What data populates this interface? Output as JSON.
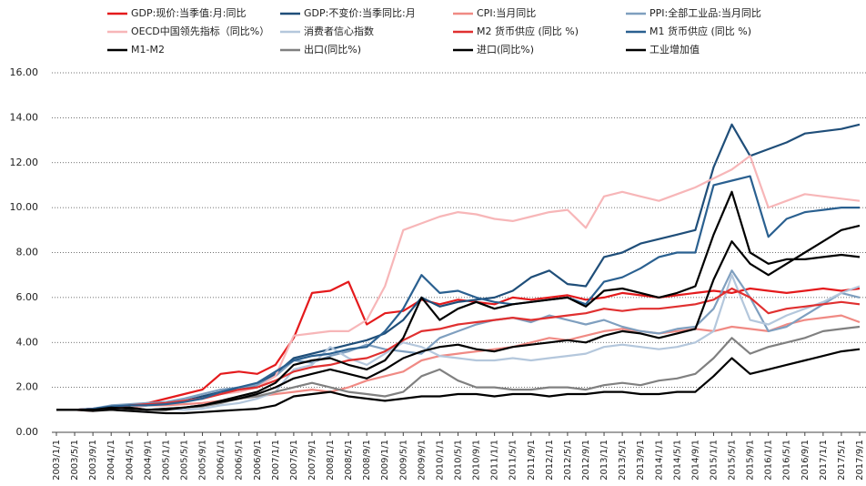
{
  "chart_data": {
    "type": "line",
    "categories": [
      "2003/1/1",
      "2003/5/1",
      "2003/9/1",
      "2004/1/1",
      "2004/5/1",
      "2004/9/1",
      "2005/1/1",
      "2005/5/1",
      "2005/9/1",
      "2006/1/1",
      "2006/5/1",
      "2006/9/1",
      "2007/1/1",
      "2007/5/1",
      "2007/9/1",
      "2008/1/1",
      "2008/5/1",
      "2008/9/1",
      "2009/1/1",
      "2009/5/1",
      "2009/9/1",
      "2010/1/1",
      "2010/5/1",
      "2010/9/1",
      "2011/1/1",
      "2011/5/1",
      "2011/9/1",
      "2012/1/1",
      "2012/5/1",
      "2012/9/1",
      "2013/1/1",
      "2013/5/1",
      "2013/9/1",
      "2014/1/1",
      "2014/5/1",
      "2014/9/1",
      "2015/1/1",
      "2015/5/1",
      "2015/9/1",
      "2016/1/1",
      "2016/5/1",
      "2016/9/1",
      "2017/1/1",
      "2017/5/1",
      "2017/9/1"
    ],
    "ylim": [
      0,
      16
    ],
    "yticks": [
      {
        "value": 0,
        "label": "0.00"
      },
      {
        "value": 2,
        "label": "2.00"
      },
      {
        "value": 4,
        "label": "4.00"
      },
      {
        "value": 6,
        "label": "6.00"
      },
      {
        "value": 8,
        "label": "8.00"
      },
      {
        "value": 10,
        "label": "10.00"
      },
      {
        "value": 12,
        "label": "12.00"
      },
      {
        "value": 14,
        "label": "14.00"
      },
      {
        "value": 16,
        "label": "16.00"
      }
    ],
    "grid": true,
    "series": [
      {
        "name": "GDP:现价:当季值:月:同比",
        "color": "#e41a1c",
        "values": [
          1,
          1,
          1.05,
          1.1,
          1.2,
          1.3,
          1.5,
          1.7,
          1.9,
          2.6,
          2.7,
          2.6,
          3.0,
          4.2,
          6.2,
          6.3,
          6.7,
          4.8,
          5.3,
          5.4,
          5.9,
          5.7,
          5.9,
          5.8,
          5.7,
          6.0,
          5.9,
          6.0,
          6.1,
          5.9,
          6.0,
          6.2,
          6.1,
          6.0,
          6.1,
          6.2,
          6.3,
          6.2,
          6.4,
          6.3,
          6.2,
          6.3,
          6.4,
          6.3,
          6.4
        ]
      },
      {
        "name": "GDP:不变价:当季同比:月",
        "color": "#1f4e79",
        "values": [
          1,
          1,
          1.05,
          1.1,
          1.15,
          1.2,
          1.3,
          1.4,
          1.6,
          1.8,
          1.9,
          2.1,
          2.6,
          3.3,
          3.5,
          3.7,
          3.9,
          4.1,
          4.4,
          5.0,
          6.0,
          5.6,
          5.8,
          5.9,
          6.0,
          6.3,
          6.9,
          7.2,
          6.6,
          6.5,
          7.8,
          8.0,
          8.4,
          8.6,
          8.8,
          9.0,
          11.8,
          13.7,
          12.3,
          12.6,
          12.9,
          13.3,
          13.4,
          13.5,
          13.7
        ]
      },
      {
        "name": "CPI:当月同比",
        "color": "#f08a84",
        "values": [
          1,
          1,
          0.95,
          1.05,
          1.1,
          1.2,
          1.2,
          1.25,
          1.3,
          1.4,
          1.5,
          1.6,
          1.7,
          1.8,
          1.9,
          1.8,
          2.0,
          2.3,
          2.5,
          2.7,
          3.2,
          3.4,
          3.5,
          3.6,
          3.7,
          3.8,
          4.0,
          4.2,
          4.1,
          4.3,
          4.5,
          4.6,
          4.5,
          4.4,
          4.5,
          4.6,
          4.5,
          4.7,
          4.6,
          4.5,
          4.8,
          5.0,
          5.1,
          5.2,
          4.9
        ]
      },
      {
        "name": "PPI:全部工业品:当月同比",
        "color": "#7f9fbf",
        "values": [
          1,
          1,
          1.05,
          1.2,
          1.25,
          1.3,
          1.35,
          1.5,
          1.7,
          1.9,
          2.0,
          2.1,
          2.5,
          3.2,
          3.1,
          3.4,
          3.6,
          3.9,
          3.7,
          3.6,
          3.5,
          4.2,
          4.5,
          4.8,
          5.0,
          5.1,
          4.9,
          5.2,
          5.0,
          4.8,
          5.0,
          4.7,
          4.5,
          4.4,
          4.6,
          4.7,
          5.5,
          7.2,
          6.0,
          4.5,
          4.7,
          5.2,
          5.7,
          6.2,
          6.0
        ]
      },
      {
        "name": "OECD中国领先指标（同比%）",
        "color": "#f7b6b8",
        "values": [
          1,
          1,
          1,
          1.1,
          1.15,
          1.2,
          1.3,
          1.4,
          1.5,
          1.7,
          1.8,
          2.0,
          2.5,
          4.3,
          4.4,
          4.5,
          4.5,
          5.0,
          6.5,
          9.0,
          9.3,
          9.6,
          9.8,
          9.7,
          9.5,
          9.4,
          9.6,
          9.8,
          9.9,
          9.1,
          10.5,
          10.7,
          10.5,
          10.3,
          10.6,
          10.9,
          11.3,
          11.7,
          12.3,
          10.0,
          10.3,
          10.6,
          10.5,
          10.4,
          10.3
        ]
      },
      {
        "name": "消费者信心指数",
        "color": "#b4c7dc",
        "values": [
          1,
          1,
          1,
          1.05,
          1.1,
          1.0,
          1.05,
          1.0,
          1.05,
          1.2,
          1.3,
          1.5,
          1.8,
          2.8,
          3.0,
          3.8,
          3.3,
          3.0,
          3.5,
          4.0,
          3.8,
          3.4,
          3.3,
          3.2,
          3.2,
          3.3,
          3.2,
          3.3,
          3.4,
          3.5,
          3.8,
          3.9,
          3.8,
          3.7,
          3.8,
          4.0,
          4.5,
          7.0,
          5.0,
          4.8,
          5.2,
          5.5,
          5.8,
          6.2,
          6.5
        ]
      },
      {
        "name": "M2 货币供应 (同比 %)",
        "color": "#e03030",
        "values": [
          1,
          1,
          1.05,
          1.1,
          1.2,
          1.25,
          1.3,
          1.4,
          1.5,
          1.7,
          1.9,
          2.0,
          2.3,
          2.7,
          2.9,
          3.0,
          3.2,
          3.3,
          3.6,
          4.1,
          4.5,
          4.6,
          4.8,
          4.9,
          5.0,
          5.1,
          5.0,
          5.1,
          5.2,
          5.3,
          5.5,
          5.4,
          5.5,
          5.5,
          5.6,
          5.7,
          5.9,
          6.4,
          6.0,
          5.3,
          5.5,
          5.6,
          5.7,
          5.8,
          5.7
        ]
      },
      {
        "name": "M1 货币供应 (同比 %)",
        "color": "#2a6090",
        "values": [
          1,
          1,
          1.05,
          1.15,
          1.2,
          1.2,
          1.25,
          1.35,
          1.5,
          1.8,
          2.0,
          2.2,
          2.7,
          3.2,
          3.4,
          3.5,
          3.7,
          3.8,
          4.5,
          5.5,
          7.0,
          6.2,
          6.3,
          6.0,
          5.8,
          5.7,
          5.8,
          5.9,
          6.0,
          5.7,
          6.7,
          6.9,
          7.3,
          7.8,
          8.0,
          8.0,
          11.0,
          11.2,
          11.4,
          8.7,
          9.5,
          9.8,
          9.9,
          10.0,
          10.0
        ]
      },
      {
        "name": "M1-M2",
        "color": "#000000",
        "values": [
          1,
          1,
          0.95,
          1.0,
          0.95,
          0.9,
          0.85,
          0.85,
          0.9,
          0.95,
          1.0,
          1.05,
          1.2,
          1.6,
          1.7,
          1.8,
          1.6,
          1.5,
          1.4,
          1.5,
          1.6,
          1.6,
          1.7,
          1.7,
          1.6,
          1.7,
          1.7,
          1.6,
          1.7,
          1.7,
          1.8,
          1.8,
          1.7,
          1.7,
          1.8,
          1.8,
          2.5,
          3.3,
          2.6,
          2.8,
          3.0,
          3.2,
          3.4,
          3.6,
          3.7
        ]
      },
      {
        "name": "出口(同比%)",
        "color": "#808080",
        "values": [
          1,
          1,
          1.0,
          1.05,
          1.1,
          1.0,
          1.05,
          1.1,
          1.15,
          1.3,
          1.5,
          1.6,
          1.8,
          2.0,
          2.2,
          2.0,
          1.8,
          1.7,
          1.6,
          1.8,
          2.5,
          2.8,
          2.3,
          2.0,
          2.0,
          1.9,
          1.9,
          2.0,
          2.0,
          1.9,
          2.1,
          2.2,
          2.1,
          2.3,
          2.4,
          2.6,
          3.3,
          4.2,
          3.5,
          3.8,
          4.0,
          4.2,
          4.5,
          4.6,
          4.7
        ]
      },
      {
        "name": "进口(同比%)",
        "color": "#000000",
        "values": [
          1,
          1,
          1.0,
          1.1,
          1.05,
          1.0,
          1.0,
          1.1,
          1.2,
          1.4,
          1.6,
          1.8,
          2.2,
          3.0,
          3.2,
          3.3,
          3.0,
          2.8,
          3.2,
          4.2,
          6.0,
          5.0,
          5.5,
          5.8,
          5.5,
          5.7,
          5.8,
          5.9,
          6.0,
          5.6,
          6.3,
          6.4,
          6.2,
          6.0,
          6.2,
          6.5,
          8.8,
          10.7,
          8.0,
          7.5,
          7.7,
          7.7,
          7.8,
          7.9,
          7.8
        ]
      },
      {
        "name": "工业增加值",
        "color": "#000000",
        "values": [
          1,
          1,
          1.0,
          1.05,
          1.1,
          1.0,
          1.05,
          1.1,
          1.2,
          1.35,
          1.5,
          1.7,
          2.0,
          2.4,
          2.6,
          2.8,
          2.6,
          2.4,
          2.8,
          3.3,
          3.6,
          3.8,
          3.9,
          3.7,
          3.6,
          3.8,
          3.9,
          4.0,
          4.1,
          4.0,
          4.3,
          4.5,
          4.4,
          4.2,
          4.4,
          4.6,
          6.8,
          8.5,
          7.5,
          7.0,
          7.5,
          8.0,
          8.5,
          9.0,
          9.2
        ]
      }
    ]
  }
}
